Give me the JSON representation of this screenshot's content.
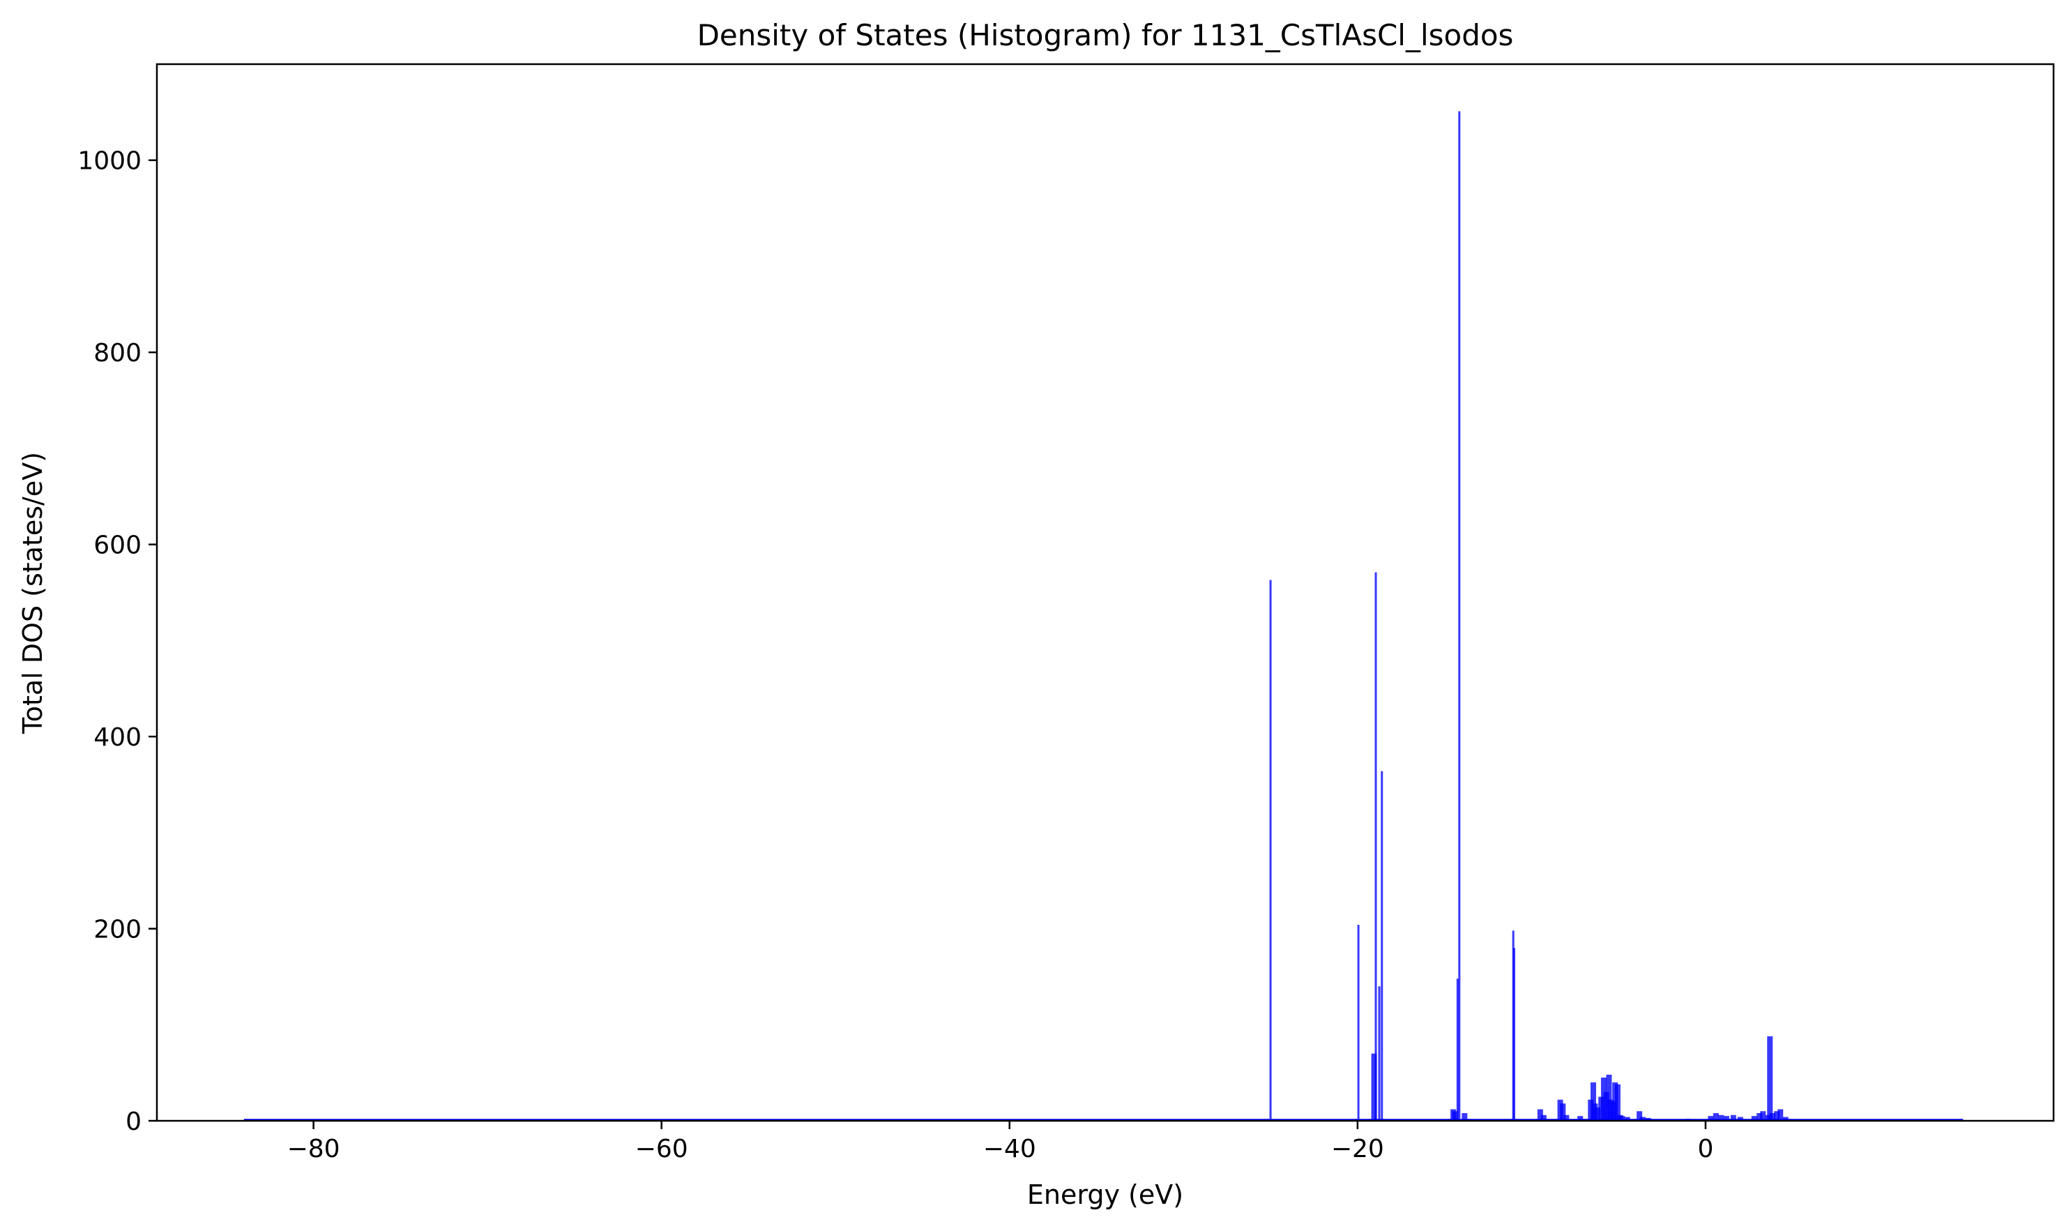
{
  "chart_data": {
    "type": "bar",
    "title": "Density of States (Histogram) for 1131_CsTlAsCl_lsodos",
    "xlabel": "Energy (eV)",
    "ylabel": "Total DOS (states/eV)",
    "xlim": [
      -89,
      20
    ],
    "ylim": [
      0,
      1100
    ],
    "xticks": [
      -80,
      -60,
      -40,
      -20,
      0
    ],
    "xtick_labels": [
      "−80",
      "−60",
      "−40",
      "−20",
      "0"
    ],
    "yticks": [
      0,
      200,
      400,
      600,
      800,
      1000
    ],
    "ytick_labels": [
      "0",
      "200",
      "400",
      "600",
      "800",
      "1000"
    ],
    "grid": false,
    "color": "#0000ff",
    "energy_range": [
      -84,
      14.8
    ],
    "series": [
      {
        "energy": [
          -25.0,
          -19.95,
          -19.05,
          -18.95,
          -18.75,
          -18.6,
          -14.5,
          -14.4,
          -14.25,
          -14.15,
          -13.85,
          -11.05,
          -11.0,
          -9.5,
          -9.3,
          -8.35,
          -8.2,
          -8.0,
          -7.2,
          -6.6,
          -6.45,
          -6.35,
          -6.2,
          -6.0,
          -5.85,
          -5.7,
          -5.55,
          -5.45,
          -5.3,
          -5.2,
          -5.05,
          -4.9,
          -4.8,
          -4.5,
          -3.8,
          -3.6,
          -3.3,
          -1.0,
          0.3,
          0.6,
          0.9,
          1.2,
          1.6,
          2.0,
          2.8,
          3.1,
          3.3,
          3.6,
          3.7,
          3.85,
          4.1,
          4.3,
          4.6
        ],
        "dos": [
          563,
          204,
          70,
          571,
          140,
          364,
          12,
          10,
          148,
          1051,
          8,
          198,
          180,
          12,
          6,
          22,
          18,
          6,
          5,
          22,
          40,
          18,
          14,
          25,
          45,
          30,
          48,
          22,
          20,
          40,
          38,
          6,
          5,
          4,
          10,
          4,
          3,
          2,
          5,
          8,
          6,
          5,
          6,
          4,
          5,
          8,
          10,
          6,
          88,
          8,
          10,
          12,
          4
        ]
      }
    ]
  }
}
